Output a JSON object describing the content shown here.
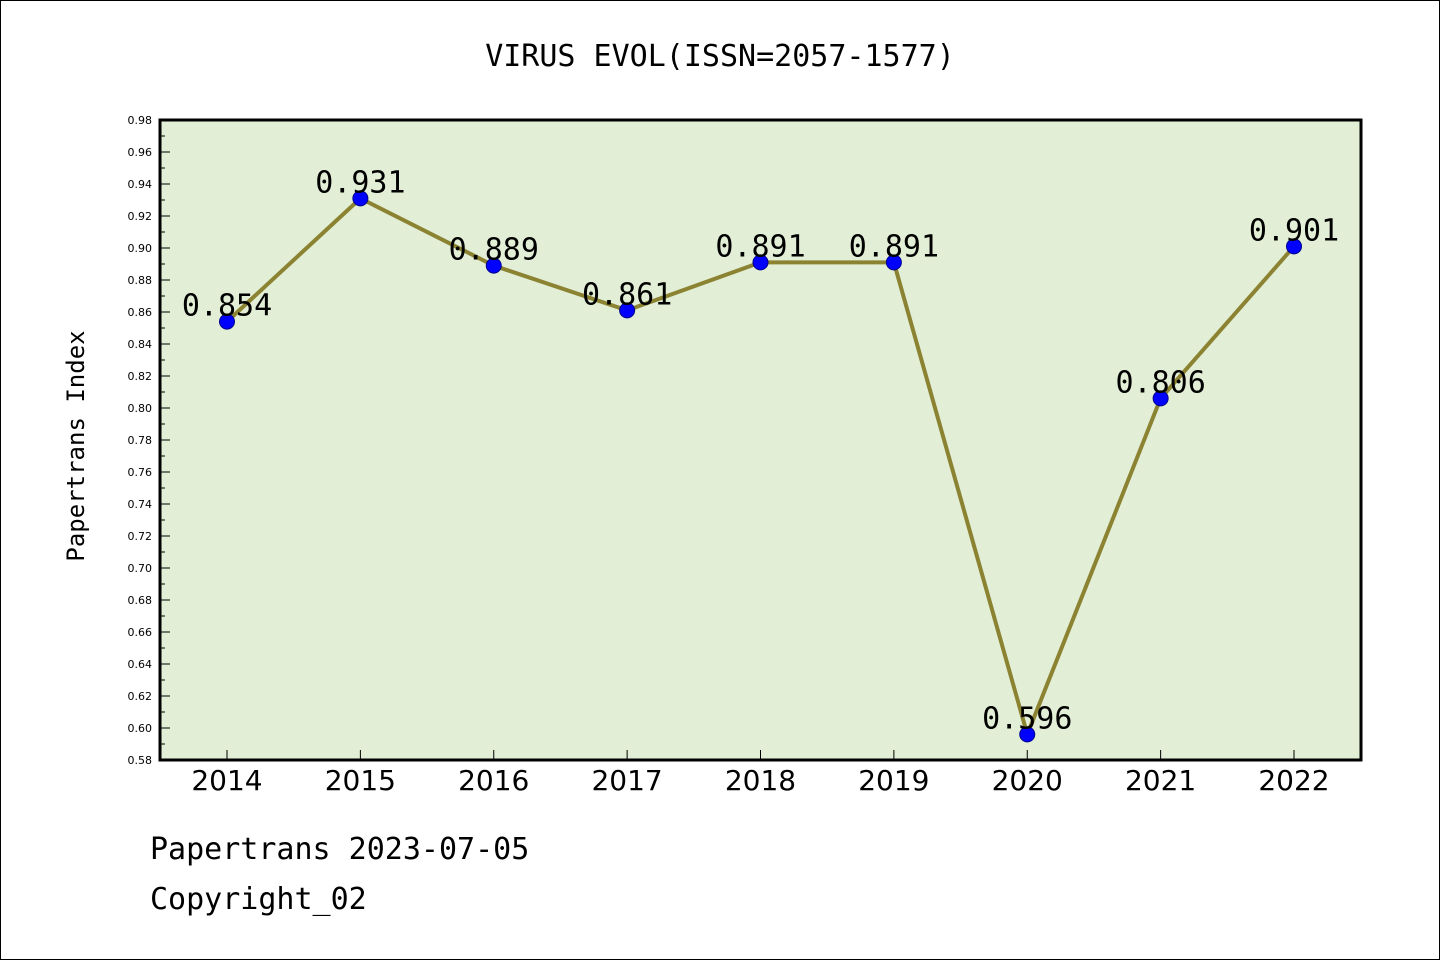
{
  "chart_data": {
    "type": "line",
    "title": "VIRUS EVOL(ISSN=2057-1577)",
    "xlabel": "",
    "ylabel": "Papertrans Index",
    "categories": [
      "2014",
      "2015",
      "2016",
      "2017",
      "2018",
      "2019",
      "2020",
      "2021",
      "2022"
    ],
    "values": [
      0.854,
      0.931,
      0.889,
      0.861,
      0.891,
      0.891,
      0.596,
      0.806,
      0.901
    ],
    "data_labels": [
      "0.854",
      "0.931",
      "0.889",
      "0.861",
      "0.891",
      "0.891",
      "0.596",
      "0.806",
      "0.901"
    ],
    "ylim": [
      0.58,
      0.98
    ],
    "yticks": [
      "0.58",
      "0.60",
      "0.62",
      "0.64",
      "0.66",
      "0.68",
      "0.70",
      "0.72",
      "0.74",
      "0.76",
      "0.78",
      "0.80",
      "0.82",
      "0.84",
      "0.86",
      "0.88",
      "0.90",
      "0.92",
      "0.94",
      "0.96",
      "0.98"
    ],
    "grid": false,
    "legend": "none",
    "colors": {
      "plot_background": "#e2efd6",
      "line": "#8b8232",
      "marker": "#0000ff",
      "marker_edge": "#00008b"
    }
  },
  "footer": {
    "line1": "Papertrans 2023-07-05",
    "line2": "Copyright_02"
  }
}
